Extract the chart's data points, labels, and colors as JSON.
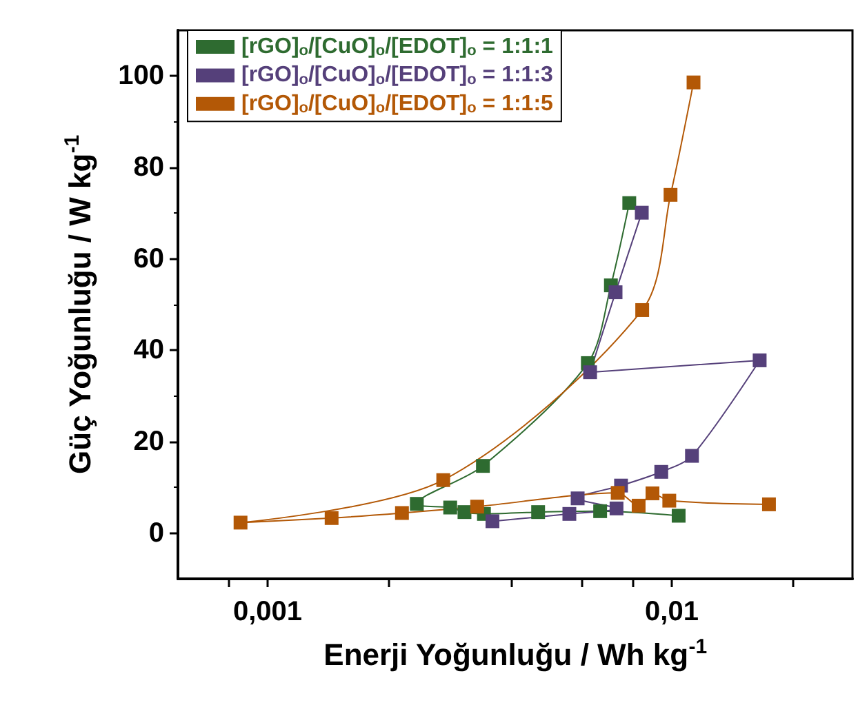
{
  "chart_data": {
    "type": "line",
    "xlabel": "Enerji Yoğunluğu / Wh kg$^{-1}$",
    "ylabel": "Güç Yoğunluğu / W kg$^{-1}$",
    "log": "x",
    "xlim": [
      0.0006,
      0.028
    ],
    "xticks": [
      {
        "value": 0.0008,
        "label": null
      },
      {
        "value": 0.001,
        "label": "0,001"
      },
      {
        "value": 0.002,
        "label": null
      },
      {
        "value": 0.004,
        "label": null
      },
      {
        "value": 0.006,
        "label": null
      },
      {
        "value": 0.008,
        "label": null
      },
      {
        "value": 0.01,
        "label": "0,01"
      },
      {
        "value": 0.02,
        "label": null
      }
    ],
    "ylim": [
      -10,
      110
    ],
    "yticks": [
      0,
      20,
      40,
      60,
      80,
      100
    ],
    "grid": false,
    "legend": "top left",
    "marker": "square",
    "line_style": "solid",
    "series": [
      {
        "name": "[rGO]$_{o}$/[CuO]$_{o}$/[EDOT]$_{o}$ = 1:1:1",
        "color": "#2e6b30",
        "x": [
          0.0104,
          0.00665,
          0.00467,
          0.00343,
          0.00307,
          0.00283,
          0.00234,
          0.00341,
          0.0062,
          0.00707,
          0.00785
        ],
        "values": [
          3.8,
          4.8,
          4.6,
          4.2,
          4.6,
          5.6,
          6.4,
          14.7,
          37.2,
          54.2,
          72.2
        ]
      },
      {
        "name": "[rGO]$_{o}$/[CuO]$_{o}$/[EDOT]$_{o}$ = 1:1:3",
        "color": "#55407a",
        "x": [
          0.0036,
          0.00558,
          0.0073,
          null,
          0.00585,
          0.00749,
          0.00942,
          0.01122,
          0.0165,
          0.00628,
          0.00726,
          0.00843
        ],
        "values": [
          2.6,
          4.2,
          5.4,
          null,
          7.6,
          10.4,
          13.4,
          16.9,
          37.8,
          35.2,
          52.7,
          70.1
        ]
      },
      {
        "name": "[rGO]$_{o}$/[CuO]$_{o}$/[EDOT]$_{o}$ = 1:1:5",
        "color": "#b35806",
        "x": [
          0.0174,
          0.00986,
          0.00896,
          0.00828,
          0.00735,
          0.0033,
          0.00215,
          0.00144,
          0.000857,
          0.00272,
          0.00845,
          0.00993,
          0.01132
        ],
        "values": [
          6.3,
          7.1,
          8.7,
          6.0,
          8.8,
          5.8,
          4.4,
          3.3,
          2.3,
          11.6,
          48.8,
          74.0,
          98.6
        ]
      }
    ]
  }
}
